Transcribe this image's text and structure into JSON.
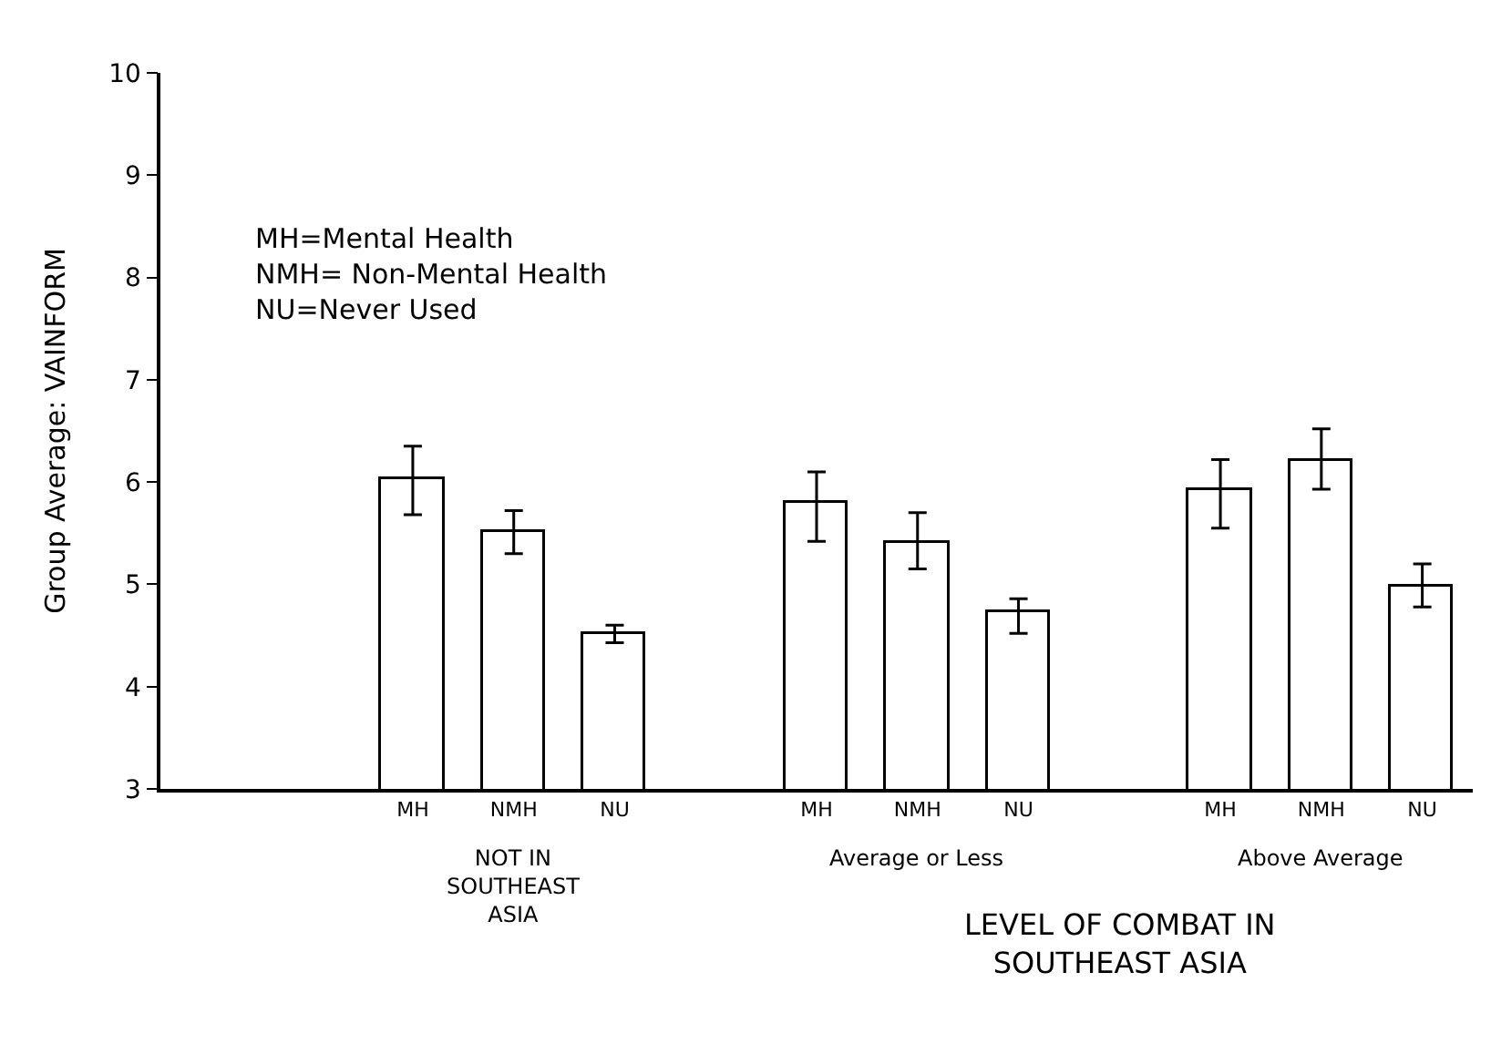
{
  "chart_data": {
    "type": "bar",
    "ylabel": "Group Average: VAINFORM",
    "xlabel": "LEVEL OF COMBAT IN\nSOUTHEAST ASIA",
    "categories": [
      null,
      null,
      "MH",
      "NMH",
      "NU",
      null,
      "MH",
      "NMH",
      "NU",
      null,
      "MH",
      "NMH",
      "NU"
    ],
    "values": [
      null,
      null,
      6.03,
      5.52,
      4.52,
      null,
      5.8,
      5.4,
      4.72,
      null,
      5.92,
      6.2,
      4.98
    ],
    "errors": [
      null,
      null,
      [
        5.68,
        6.35
      ],
      [
        5.3,
        5.72
      ],
      [
        4.43,
        4.6
      ],
      null,
      [
        5.42,
        6.1
      ],
      [
        5.15,
        5.7
      ],
      [
        4.52,
        4.86
      ],
      null,
      [
        5.55,
        6.22
      ],
      [
        5.93,
        6.52
      ],
      [
        4.78,
        5.2
      ]
    ],
    "color": "#ffffff",
    "ylim": [
      3,
      10
    ],
    "yticks": [
      3,
      4,
      5,
      6,
      7,
      8,
      9,
      10
    ],
    "annotations": [
      "MH=Mental Health\nNMH= Non-Mental Health\nNU=Never Used",
      "NOT IN\nSOUTHEAST\nASIA",
      "Average or Less",
      "Above Average"
    ]
  }
}
